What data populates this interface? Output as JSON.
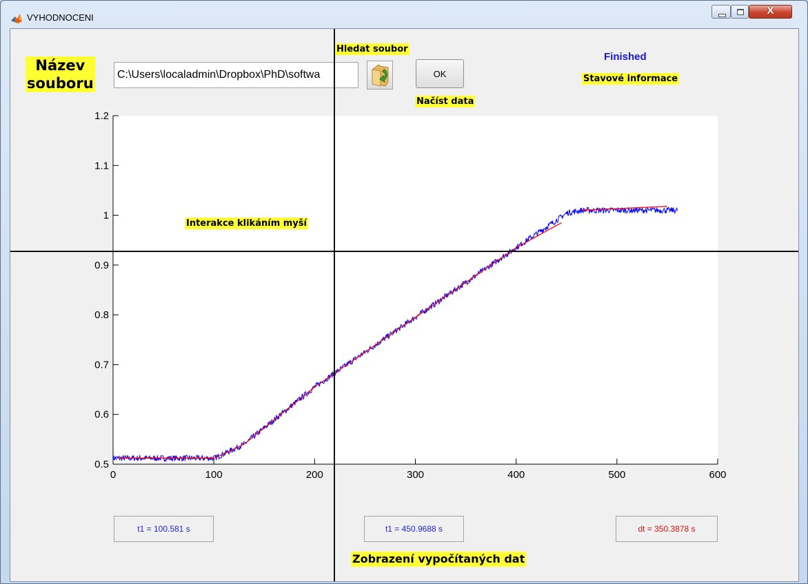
{
  "window": {
    "title": "VYHODNOCENI",
    "close_symbol": "X"
  },
  "labels": {
    "filename": "Název souboru",
    "browse": "Hledat soubor",
    "load": "Načíst data",
    "status_info": "Stavové informace",
    "click_interaction": "Interakce klikáním myší",
    "results": "Zobrazení vypočítaných dat"
  },
  "status": {
    "text": "Finished",
    "color": "#1515e0"
  },
  "path_input": {
    "value": "C:\\Users\\localadmin\\Dropbox\\PhD\\softwa"
  },
  "buttons": {
    "folder_icon": "folder-open-green-arrow-icon",
    "ok_label": "OK"
  },
  "results": {
    "t1": "t1 = 100.581 s",
    "t2": "t1 = 450.9688 s",
    "dt": "dt = 350.3878 s"
  },
  "colors": {
    "highlight": "#ffff33",
    "signal": "#0000ff",
    "fit": "#ff0000",
    "crosshair": "#111111"
  },
  "chart_data": {
    "type": "line",
    "title": "",
    "xlabel": "",
    "ylabel": "",
    "xlim": [
      0,
      600
    ],
    "ylim": [
      0.5,
      1.2
    ],
    "xticks": [
      0,
      100,
      200,
      300,
      400,
      500,
      600
    ],
    "yticks": [
      0.5,
      0.6,
      0.7,
      0.8,
      0.9,
      1,
      1.1,
      1.2
    ],
    "grid": false,
    "crosshair": {
      "x": 221,
      "y": 0.925
    },
    "series": [
      {
        "color": "#0000ff",
        "style": "noisy",
        "x": [
          0,
          100.6,
          130,
          200,
          300,
          400,
          450.97,
          465,
          560
        ],
        "y": [
          0.512,
          0.512,
          0.54,
          0.655,
          0.795,
          0.935,
          1.005,
          1.01,
          1.01
        ]
      },
      {
        "color": "#ff0000",
        "style": "fit",
        "x": [
          5,
          100.6,
          130,
          200,
          300,
          400,
          445
        ],
        "y": [
          0.512,
          0.512,
          0.54,
          0.655,
          0.795,
          0.935,
          0.985
        ]
      },
      {
        "color": "#ff0000",
        "style": "fit",
        "x": [
          465,
          550
        ],
        "y": [
          1.01,
          1.018
        ]
      }
    ]
  }
}
